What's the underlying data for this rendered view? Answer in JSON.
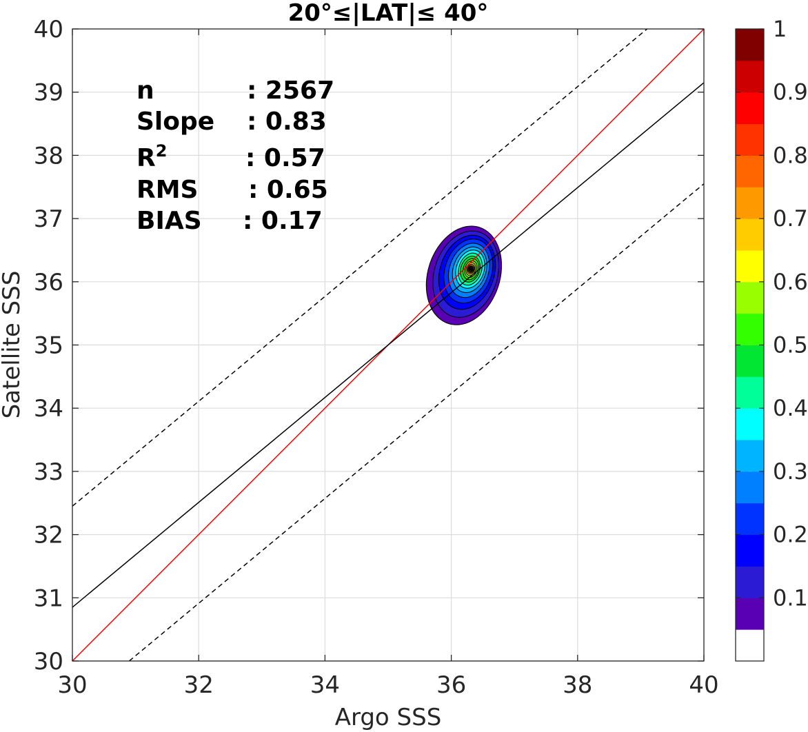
{
  "chart_data": {
    "type": "contour-scatter",
    "title": "20°≤|LAT|≤ 40°",
    "xlabel": "Argo SSS",
    "ylabel": "Satellite SSS",
    "xlim": [
      30,
      40
    ],
    "ylim": [
      30,
      40
    ],
    "xticks": [
      "30",
      "32",
      "34",
      "36",
      "38",
      "40"
    ],
    "yticks": [
      "30",
      "31",
      "32",
      "33",
      "34",
      "35",
      "36",
      "37",
      "38",
      "39",
      "40"
    ],
    "grid": true,
    "stats": [
      {
        "label": "n",
        "value": ": 2567"
      },
      {
        "label": "Slope",
        "value": ": 0.83"
      },
      {
        "label": "R",
        "sup": "2",
        "value": ": 0.57"
      },
      {
        "label": "RMS",
        "value": ": 0.65"
      },
      {
        "label": "BIAS",
        "value": ": 0.17"
      }
    ],
    "lines": [
      {
        "role": "one-to-one",
        "color": "#ff0000",
        "style": "solid",
        "points": [
          [
            30,
            30
          ],
          [
            40,
            40
          ]
        ]
      },
      {
        "role": "regression",
        "color": "#000000",
        "style": "solid",
        "points": [
          [
            30,
            30.85
          ],
          [
            40,
            39.15
          ]
        ]
      },
      {
        "role": "upper-bound",
        "color": "#000000",
        "style": "dashed",
        "points": [
          [
            30,
            32.45
          ],
          [
            39.1,
            40
          ]
        ]
      },
      {
        "role": "lower-bound",
        "color": "#000000",
        "style": "dashed",
        "points": [
          [
            30.9,
            30
          ],
          [
            40,
            37.55
          ]
        ]
      }
    ],
    "density_peak": {
      "x": 36.3,
      "y": 36.2
    },
    "contours": [
      {
        "level": 0.05,
        "cx": 36.2,
        "cy": 36.1,
        "rx": 0.57,
        "ry": 0.8,
        "color": "#5a00b4"
      },
      {
        "level": 0.15,
        "cx": 36.23,
        "cy": 36.12,
        "rx": 0.5,
        "ry": 0.7,
        "color": "#2c1bd4"
      },
      {
        "level": 0.2,
        "cx": 36.25,
        "cy": 36.15,
        "rx": 0.43,
        "ry": 0.6,
        "color": "#0000ff"
      },
      {
        "level": 0.25,
        "cx": 36.27,
        "cy": 36.17,
        "rx": 0.37,
        "ry": 0.52,
        "color": "#0033ff"
      },
      {
        "level": 0.3,
        "cx": 36.28,
        "cy": 36.18,
        "rx": 0.31,
        "ry": 0.44,
        "color": "#0080ff"
      },
      {
        "level": 0.35,
        "cx": 36.29,
        "cy": 36.19,
        "rx": 0.26,
        "ry": 0.37,
        "color": "#00b4ff"
      },
      {
        "level": 0.4,
        "cx": 36.3,
        "cy": 36.2,
        "rx": 0.22,
        "ry": 0.31,
        "color": "#00ffff"
      },
      {
        "level": 0.45,
        "cx": 36.3,
        "cy": 36.2,
        "rx": 0.18,
        "ry": 0.26,
        "color": "#00ff99"
      },
      {
        "level": 0.5,
        "cx": 36.3,
        "cy": 36.2,
        "rx": 0.15,
        "ry": 0.21,
        "color": "#00e633"
      },
      {
        "level": 0.55,
        "cx": 36.31,
        "cy": 36.2,
        "rx": 0.12,
        "ry": 0.17,
        "color": "#33ff00"
      },
      {
        "level": 0.6,
        "cx": 36.31,
        "cy": 36.2,
        "rx": 0.095,
        "ry": 0.135,
        "color": "#99ff00"
      },
      {
        "level": 0.65,
        "cx": 36.31,
        "cy": 36.2,
        "rx": 0.075,
        "ry": 0.105,
        "color": "#ffff00"
      },
      {
        "level": 0.7,
        "cx": 36.31,
        "cy": 36.2,
        "rx": 0.058,
        "ry": 0.08,
        "color": "#ffcc00"
      },
      {
        "level": 0.75,
        "cx": 36.31,
        "cy": 36.2,
        "rx": 0.045,
        "ry": 0.06,
        "color": "#ff9900"
      },
      {
        "level": 0.8,
        "cx": 36.31,
        "cy": 36.2,
        "rx": 0.034,
        "ry": 0.045,
        "color": "#ff6600"
      },
      {
        "level": 0.85,
        "cx": 36.31,
        "cy": 36.2,
        "rx": 0.024,
        "ry": 0.032,
        "color": "#ff3300"
      },
      {
        "level": 0.9,
        "cx": 36.31,
        "cy": 36.2,
        "rx": 0.015,
        "ry": 0.02,
        "color": "#ff0000"
      },
      {
        "level": 0.95,
        "cx": 36.31,
        "cy": 36.2,
        "rx": 0.008,
        "ry": 0.011,
        "color": "#cc0000"
      }
    ],
    "colorbar": {
      "range": [
        0,
        1
      ],
      "colors": [
        "#ffffff",
        "#5a00b4",
        "#2c1bd4",
        "#0000ff",
        "#0033ff",
        "#0080ff",
        "#00b4ff",
        "#00ffff",
        "#00ff99",
        "#00e633",
        "#33ff00",
        "#99ff00",
        "#ffff00",
        "#ffcc00",
        "#ff9900",
        "#ff6600",
        "#ff3300",
        "#ff0000",
        "#cc0000",
        "#800000"
      ],
      "ticks": [
        {
          "value": 0.1,
          "label": "0.1"
        },
        {
          "value": 0.2,
          "label": "0.2"
        },
        {
          "value": 0.3,
          "label": "0.3"
        },
        {
          "value": 0.4,
          "label": "0.4"
        },
        {
          "value": 0.5,
          "label": "0.5"
        },
        {
          "value": 0.6,
          "label": "0.6"
        },
        {
          "value": 0.7,
          "label": "0.7"
        },
        {
          "value": 0.8,
          "label": "0.8"
        },
        {
          "value": 0.9,
          "label": "0.9"
        },
        {
          "value": 1.0,
          "label": "1"
        }
      ]
    }
  }
}
